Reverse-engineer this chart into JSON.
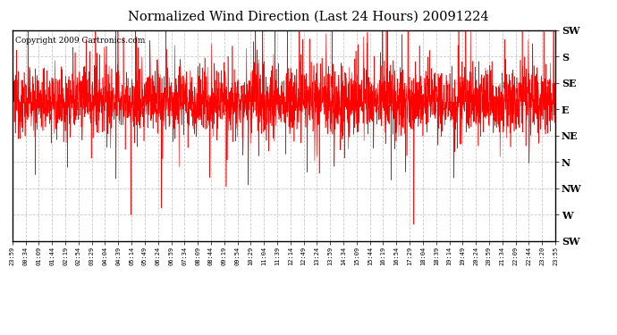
{
  "title": "Normalized Wind Direction (Last 24 Hours) 20091224",
  "copyright": "Copyright 2009 Cartronics.com",
  "line_color": "#ff0000",
  "background_color": "#ffffff",
  "grid_color": "#c8c8c8",
  "ytick_labels": [
    "SW",
    "W",
    "NW",
    "N",
    "NE",
    "E",
    "SE",
    "S",
    "SW"
  ],
  "ytick_values": [
    0,
    1,
    2,
    3,
    4,
    5,
    6,
    7,
    8
  ],
  "xtick_labels": [
    "23:59",
    "00:34",
    "01:09",
    "01:44",
    "02:19",
    "02:54",
    "03:29",
    "04:04",
    "04:39",
    "05:14",
    "05:49",
    "06:24",
    "06:59",
    "07:34",
    "08:09",
    "08:44",
    "09:19",
    "09:54",
    "10:29",
    "11:04",
    "11:39",
    "12:14",
    "12:49",
    "13:24",
    "13:59",
    "14:34",
    "15:09",
    "15:44",
    "16:19",
    "16:54",
    "17:29",
    "18:04",
    "18:39",
    "19:14",
    "19:49",
    "20:24",
    "20:59",
    "21:34",
    "22:09",
    "22:44",
    "23:20",
    "23:55"
  ],
  "ylim": [
    0,
    8
  ],
  "xlim_max": 41,
  "num_points": 2880,
  "base_value": 5.3,
  "std_value": 0.6,
  "seed": 12345,
  "title_fontsize": 10.5,
  "copyright_fontsize": 6.5,
  "ytick_fontsize": 8,
  "xtick_fontsize": 5,
  "figsize": [
    6.9,
    3.75
  ],
  "dpi": 100
}
